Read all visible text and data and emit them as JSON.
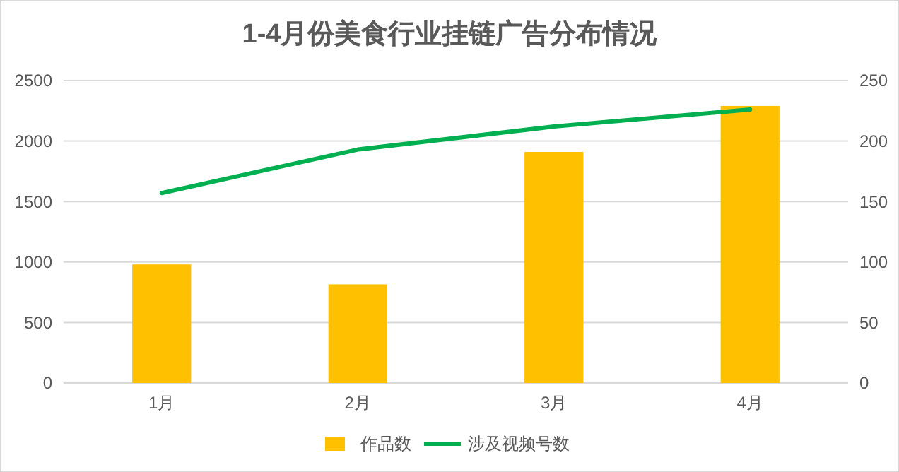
{
  "chart_data": {
    "type": "bar",
    "title": "1-4月份美食行业挂链广告分布情况",
    "categories": [
      "1月",
      "2月",
      "3月",
      "4月"
    ],
    "series": [
      {
        "name": "作品数",
        "color": "#ffc000",
        "values": [
          980,
          815,
          1910,
          2290
        ]
      },
      {
        "name": "涉及视频号数",
        "type": "line",
        "axis": "y2",
        "color": "#00b050",
        "values": [
          157,
          193,
          212,
          226
        ]
      }
    ],
    "ylim": [
      0,
      2500
    ],
    "yticks": [
      0,
      500,
      1000,
      1500,
      2000,
      2500
    ],
    "y2lim": [
      0,
      250
    ],
    "y2ticks": [
      0,
      50,
      100,
      150,
      200,
      250
    ],
    "grid": "y",
    "legend": "bottom",
    "marker": "none"
  }
}
